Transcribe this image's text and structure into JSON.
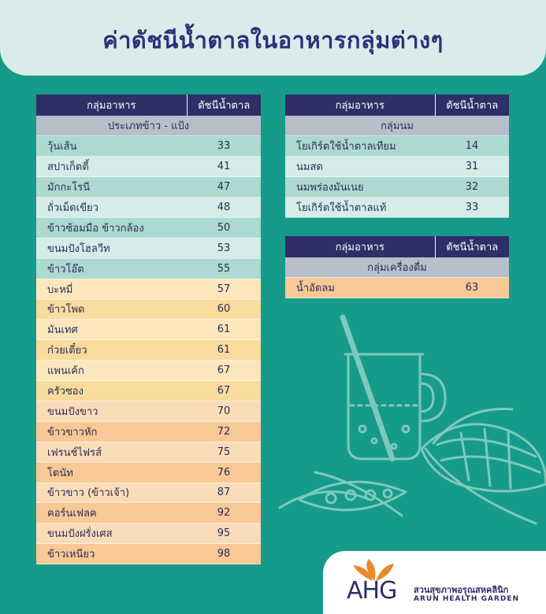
{
  "title": "ค่าดัชนีน้ำตาลในอาหารกลุ่มต่างๆ",
  "headers": {
    "food_group": "กลุ่มอาหาร",
    "gi": "ดัชนีน้ำตาล"
  },
  "colors": {
    "background": "#169a8a",
    "header": "#2d2f66",
    "category": "#b8bfcb",
    "low_a": "#acd9d1",
    "low_b": "#d5ece8",
    "mid_a": "#f9db9d",
    "mid_b": "#fce7bd",
    "high_a": "#f8c895",
    "high_b": "#fbdcb9"
  },
  "tables": [
    {
      "category": "ประเภทข้าว - แป้ง",
      "rows": [
        {
          "name": "วุ้นเส้น",
          "value": "33",
          "level": "low"
        },
        {
          "name": "สปาเก็ตตี้",
          "value": "41",
          "level": "low"
        },
        {
          "name": "มักกะโรนี",
          "value": "47",
          "level": "low"
        },
        {
          "name": "ถั่วเม็ดเขียว",
          "value": "48",
          "level": "low"
        },
        {
          "name": "ข้าวซ้อมมือ ข้าวกล้อง",
          "value": "50",
          "level": "low"
        },
        {
          "name": "ขนมปังโฮลวีท",
          "value": "53",
          "level": "low"
        },
        {
          "name": "ข้าวโอ๊ต",
          "value": "55",
          "level": "low"
        },
        {
          "name": "บะหมี่",
          "value": "57",
          "level": "mid"
        },
        {
          "name": "ข้าวโพด",
          "value": "60",
          "level": "mid"
        },
        {
          "name": "มันเทศ",
          "value": "61",
          "level": "mid"
        },
        {
          "name": "ก๋วยเตี๋ยว",
          "value": "61",
          "level": "mid"
        },
        {
          "name": "แพนเค้ก",
          "value": "67",
          "level": "mid"
        },
        {
          "name": "ครัวซอง",
          "value": "67",
          "level": "mid"
        },
        {
          "name": "ขนมปังขาว",
          "value": "70",
          "level": "high"
        },
        {
          "name": "ข้าวขาวหัก",
          "value": "72",
          "level": "high"
        },
        {
          "name": "เฟรนช์ไฟรส์",
          "value": "75",
          "level": "high"
        },
        {
          "name": "โดนัท",
          "value": "76",
          "level": "high"
        },
        {
          "name": "ข้าวขาว (ข้าวเจ้า)",
          "value": "87",
          "level": "high"
        },
        {
          "name": "คอร์นเฟลค",
          "value": "92",
          "level": "high"
        },
        {
          "name": "ขนมปังฝรั่งเศส",
          "value": "95",
          "level": "high"
        },
        {
          "name": "ข้าวเหนียว",
          "value": "98",
          "level": "high"
        }
      ]
    },
    {
      "category": "กลุ่มนม",
      "rows": [
        {
          "name": "โยเกิร์ตใช้น้ำตาลเทียม",
          "value": "14",
          "level": "low"
        },
        {
          "name": "นมสด",
          "value": "31",
          "level": "low"
        },
        {
          "name": "นมพร่องมันเนย",
          "value": "32",
          "level": "low"
        },
        {
          "name": "โยเกิร์ตใช้น้ำตาลแท้",
          "value": "33",
          "level": "low"
        }
      ]
    },
    {
      "category": "กลุ่มเครื่องดื่ม",
      "rows": [
        {
          "name": "น้ำอัดลม",
          "value": "63",
          "level": "high"
        }
      ]
    }
  ],
  "logo": {
    "mark": "AHG",
    "thai": "สวนสุขภาพอรุณสหคลินิก",
    "english": "ARUN HEALTH GARDEN"
  },
  "decorations": [
    "drink-glass-icon",
    "corn-icon",
    "pea-pod-icon"
  ]
}
